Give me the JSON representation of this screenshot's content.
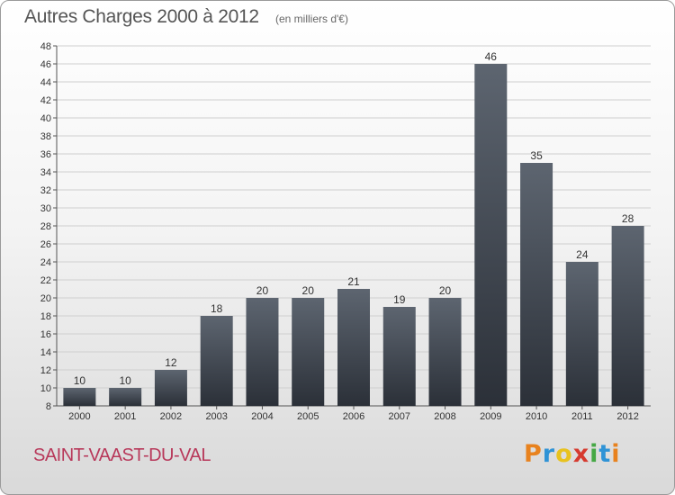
{
  "header": {
    "title": "Autres Charges 2000 à 2012",
    "subtitle": "(en milliers d'€)"
  },
  "footer": {
    "city": "SAINT-VAAST-DU-VAL",
    "logo_letters": [
      "P",
      "r",
      "o",
      "x",
      "i",
      "t",
      "i"
    ],
    "logo_colors": [
      "#e8821e",
      "#2f93d6",
      "#e8c21e",
      "#d63a2f",
      "#45a845",
      "#2f93d6",
      "#e8821e"
    ]
  },
  "colors": {
    "accent": "#b8385a",
    "bar_top": "#5d6570",
    "bar_bottom": "#2b3038",
    "grid": "#cfcfcf"
  },
  "chart_data": {
    "type": "bar",
    "title": "Autres Charges 2000 à 2012",
    "subtitle": "(en milliers d'€)",
    "categories": [
      "2000",
      "2001",
      "2002",
      "2003",
      "2004",
      "2005",
      "2006",
      "2007",
      "2008",
      "2009",
      "2010",
      "2011",
      "2012"
    ],
    "values": [
      10,
      10,
      12,
      18,
      20,
      20,
      21,
      19,
      20,
      46,
      35,
      24,
      28
    ],
    "ylim": [
      8,
      48
    ],
    "yticks": [
      8,
      10,
      12,
      14,
      16,
      18,
      20,
      22,
      24,
      26,
      28,
      30,
      32,
      34,
      36,
      38,
      40,
      42,
      44,
      46,
      48
    ],
    "grid": true,
    "xlabel": "",
    "ylabel": ""
  }
}
